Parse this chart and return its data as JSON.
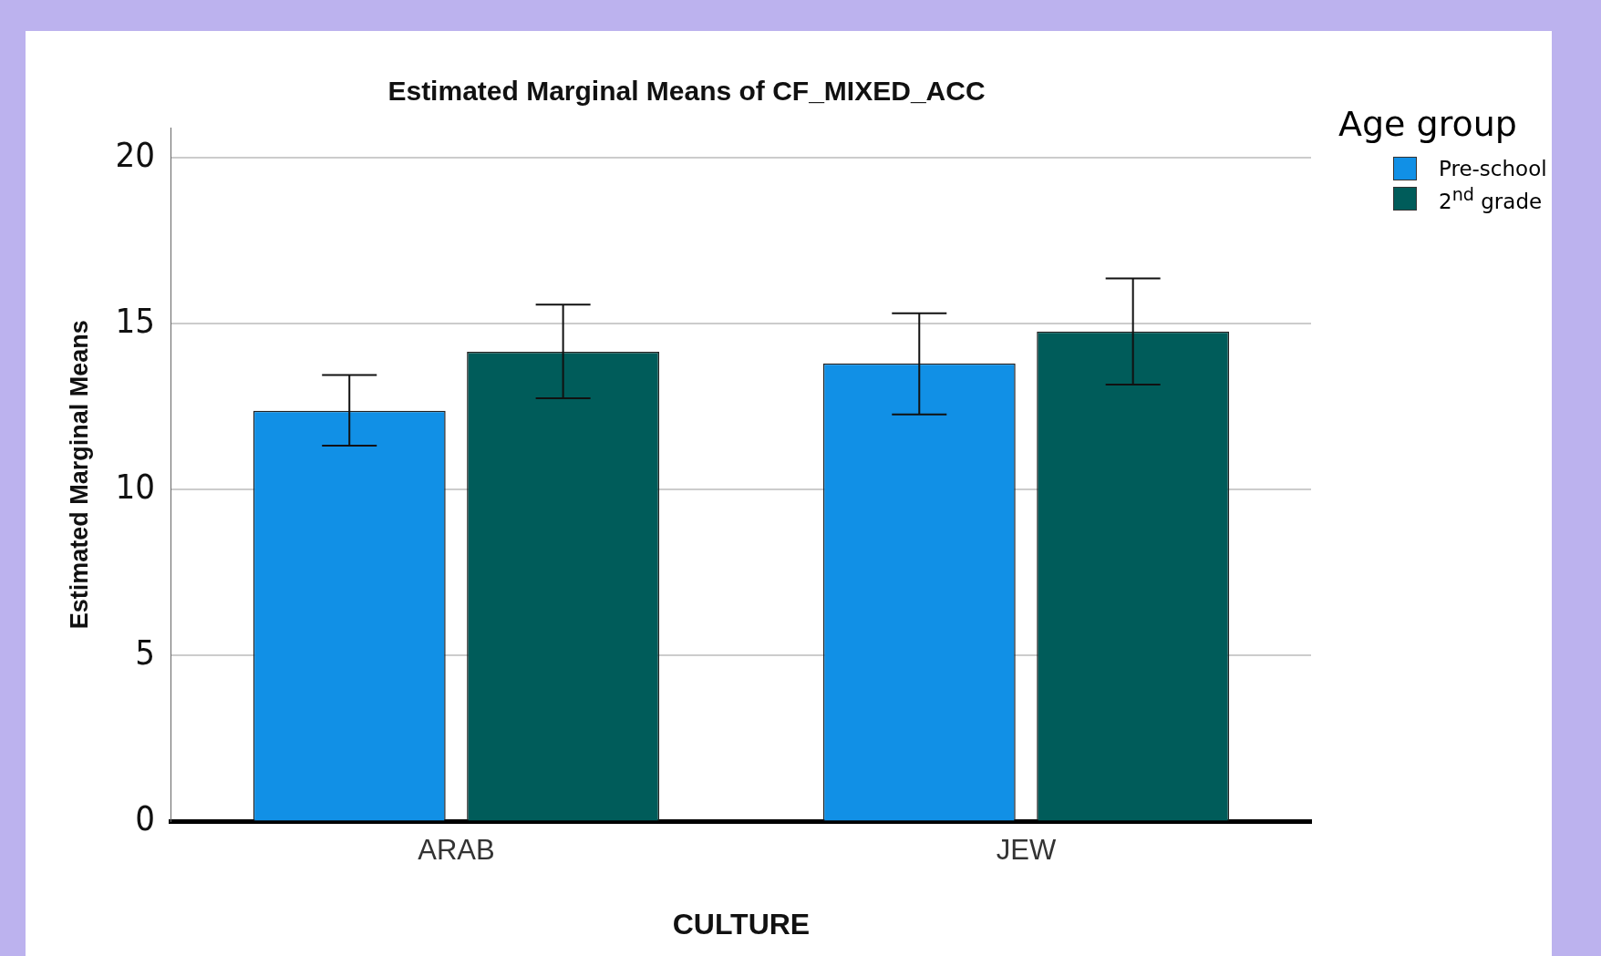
{
  "chart_data": {
    "type": "bar",
    "title": "Estimated Marginal Means of CF_MIXED_ACC",
    "xlabel": "CULTURE",
    "ylabel": "Estimated Marginal Means",
    "legend_title": "Age group",
    "categories": [
      "ARAB",
      "JEW"
    ],
    "series": [
      {
        "name": "Pre-school",
        "color": "#1190e6",
        "values": [
          12.37,
          13.8
        ],
        "errors": [
          [
            11.32,
            13.45
          ],
          [
            12.26,
            15.31
          ]
        ]
      },
      {
        "name": "2$^{nd}$ grade",
        "color": "#005c5a",
        "values": [
          14.15,
          14.76
        ],
        "errors": [
          [
            12.75,
            15.57
          ],
          [
            13.16,
            16.36
          ]
        ]
      }
    ],
    "ylim": [
      0,
      20.9
    ],
    "yticks": [
      0,
      5,
      10,
      15,
      20
    ],
    "grid": "y",
    "legend": "top right"
  }
}
